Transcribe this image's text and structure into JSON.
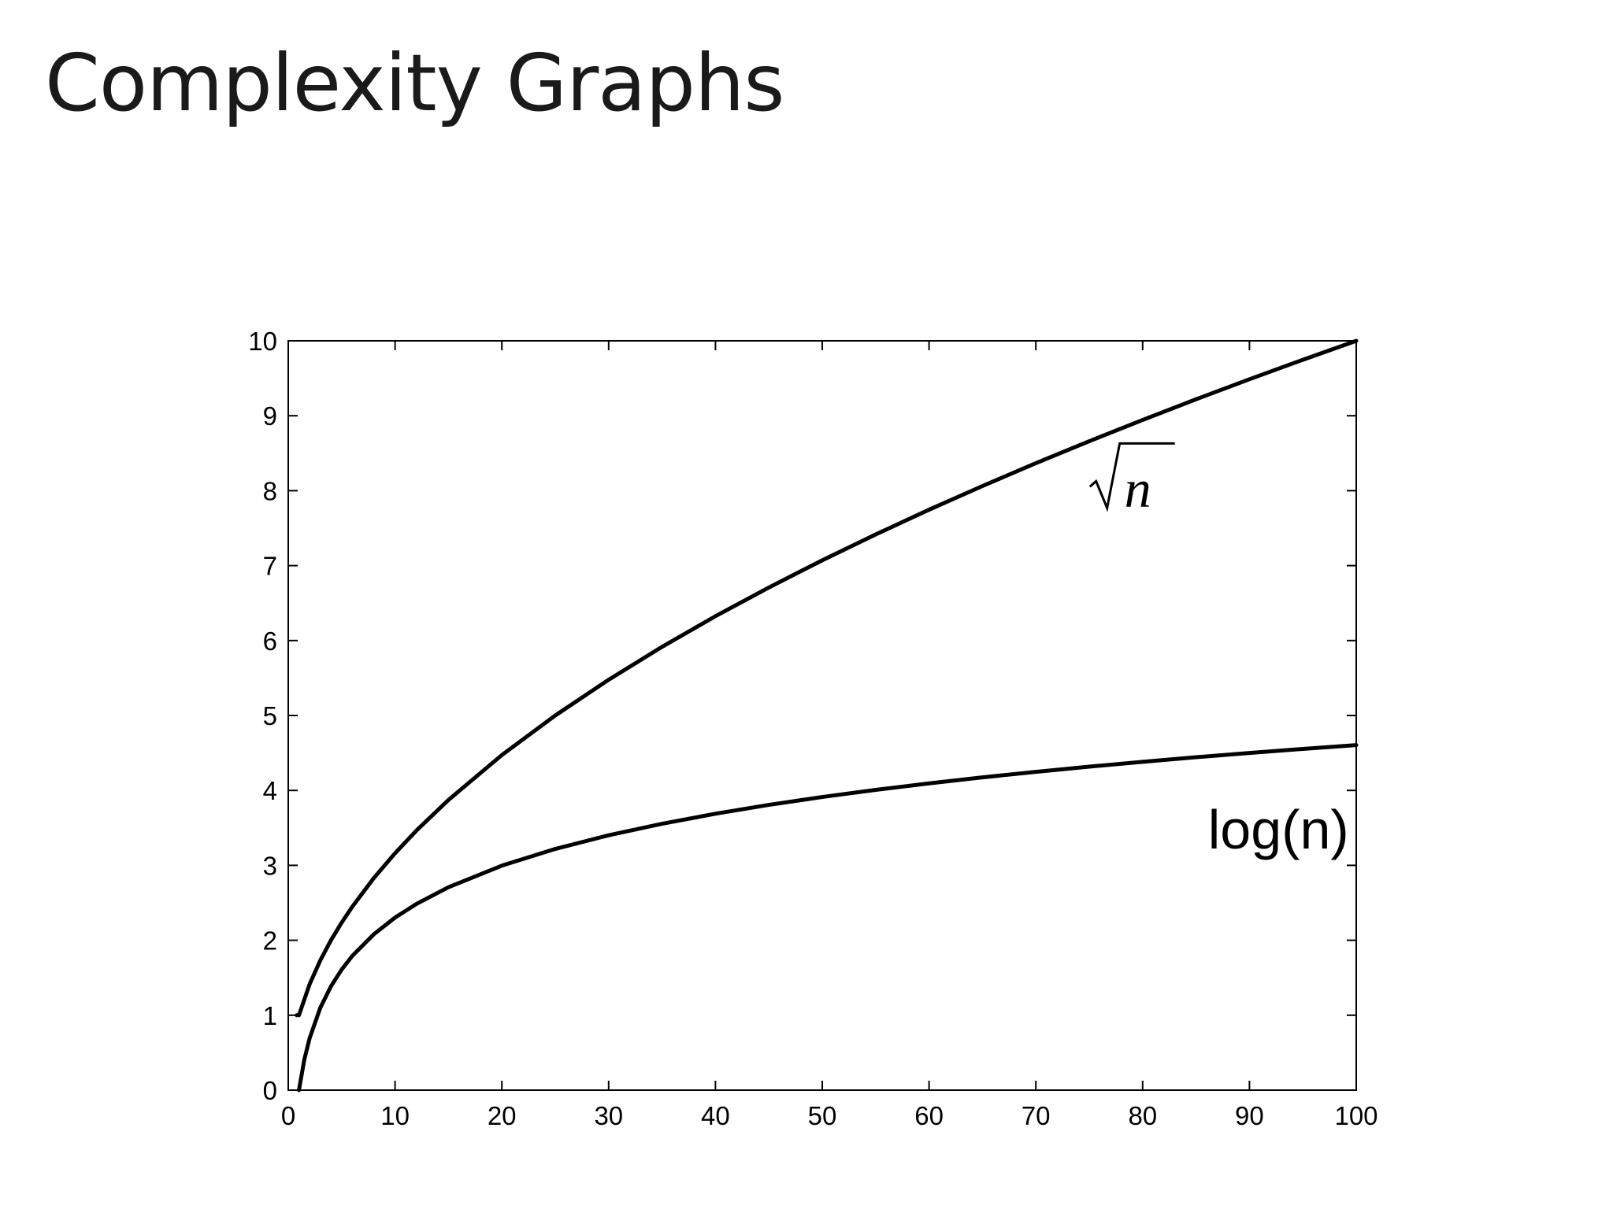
{
  "slide": {
    "title": "Complexity Graphs"
  },
  "chart_data": {
    "type": "line",
    "title": "",
    "xlabel": "",
    "ylabel": "",
    "xlim": [
      0,
      100
    ],
    "ylim": [
      0,
      10
    ],
    "grid": false,
    "x_ticks": [
      0,
      10,
      20,
      30,
      40,
      50,
      60,
      70,
      80,
      90,
      100
    ],
    "y_ticks": [
      0,
      1,
      2,
      3,
      4,
      5,
      6,
      7,
      8,
      9,
      10
    ],
    "line_color": "#000000",
    "series": [
      {
        "name": "√n",
        "label_x": 78,
        "label_y": 8.0,
        "x": [
          1,
          2,
          3,
          4,
          5,
          6,
          8,
          10,
          12,
          15,
          20,
          25,
          30,
          35,
          40,
          45,
          50,
          55,
          60,
          65,
          70,
          75,
          80,
          85,
          90,
          95,
          100
        ],
        "values": [
          1,
          1.414,
          1.732,
          2,
          2.236,
          2.449,
          2.828,
          3.162,
          3.464,
          3.873,
          4.472,
          5,
          5.477,
          5.916,
          6.325,
          6.708,
          7.071,
          7.416,
          7.746,
          8.062,
          8.367,
          8.66,
          8.944,
          9.22,
          9.487,
          9.747,
          10
        ]
      },
      {
        "name": "log(n)",
        "label_x": 87,
        "label_y": 3.5,
        "x": [
          1,
          1.5,
          2,
          3,
          4,
          5,
          6,
          8,
          10,
          12,
          15,
          20,
          25,
          30,
          35,
          40,
          45,
          50,
          55,
          60,
          65,
          70,
          75,
          80,
          85,
          90,
          95,
          100
        ],
        "values": [
          0,
          0.405,
          0.693,
          1.099,
          1.386,
          1.609,
          1.792,
          2.079,
          2.303,
          2.485,
          2.708,
          2.996,
          3.219,
          3.401,
          3.555,
          3.689,
          3.807,
          3.912,
          4.007,
          4.094,
          4.174,
          4.248,
          4.317,
          4.382,
          4.443,
          4.5,
          4.554,
          4.605
        ]
      }
    ]
  }
}
